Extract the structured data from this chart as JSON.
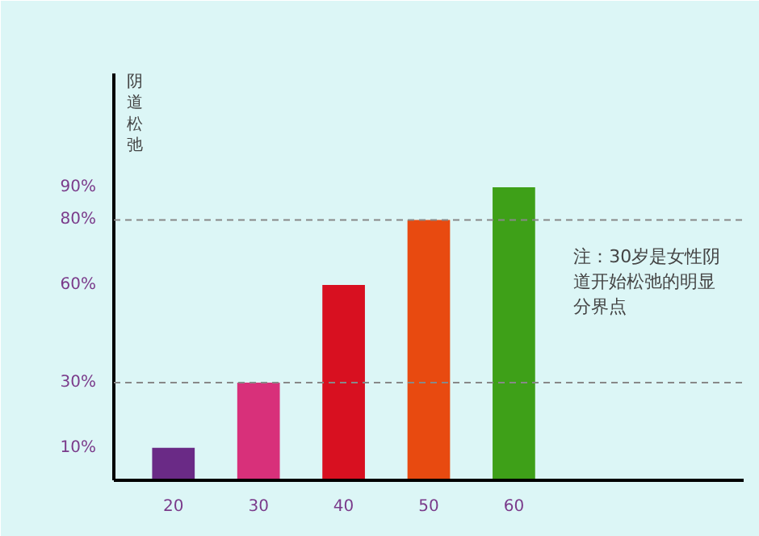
{
  "chart_data": {
    "type": "bar",
    "ylabel": "阴道松弛",
    "categories": [
      "20",
      "30",
      "40",
      "50",
      "60"
    ],
    "values": [
      10,
      30,
      60,
      80,
      90
    ],
    "colors": [
      "#6a2a86",
      "#d8307a",
      "#d81020",
      "#e84a10",
      "#3ea018"
    ],
    "ylim": [
      0,
      125
    ],
    "yticks": [
      {
        "value": 10,
        "label": "10%"
      },
      {
        "value": 30,
        "label": "30%"
      },
      {
        "value": 60,
        "label": "60%"
      },
      {
        "value": 80,
        "label": "80%"
      },
      {
        "value": 90,
        "label": "90%"
      }
    ],
    "ref_lines": [
      {
        "axis": "y",
        "value": 80,
        "line_style": "dashed",
        "color": "#888888"
      },
      {
        "axis": "y",
        "value": 30,
        "line_style": "dashed",
        "color": "#888888"
      }
    ],
    "annotations": [
      "注：30岁是女性阴道开始松弛的明显分界点"
    ],
    "grid": false
  }
}
